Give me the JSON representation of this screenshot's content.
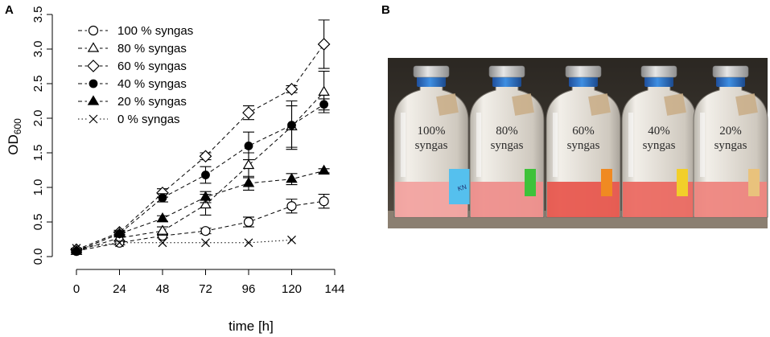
{
  "figure": {
    "panel_a_letter": "A",
    "panel_b_letter": "B"
  },
  "chart_data": {
    "type": "line",
    "title": "",
    "xlabel": "time [h]",
    "ylabel": "OD",
    "ylabel_sub": "600",
    "xlim": [
      0,
      144
    ],
    "ylim": [
      0,
      3.5
    ],
    "xticks": [
      0,
      24,
      48,
      72,
      96,
      120,
      144
    ],
    "xtick_labels": [
      "0",
      "24",
      "48",
      "72",
      "96",
      "120",
      "144"
    ],
    "yticks": [
      0,
      0.5,
      1,
      1.5,
      2,
      2.5,
      3,
      3.5
    ],
    "ytick_labels": [
      "0.0",
      "0.5",
      "1.0",
      "1.5",
      "2.0",
      "2.5",
      "3.0",
      "3.5"
    ],
    "grid": false,
    "legend_position": "top-left",
    "series": [
      {
        "name": "100 % syngas",
        "marker": "open-circle",
        "line": "dashed",
        "x": [
          0,
          24,
          48,
          72,
          96,
          120,
          138
        ],
        "y": [
          0.08,
          0.2,
          0.3,
          0.37,
          0.5,
          0.73,
          0.8
        ],
        "err": [
          0.02,
          0.03,
          0.03,
          0.04,
          0.07,
          0.1,
          0.1
        ]
      },
      {
        "name": "80 % syngas",
        "marker": "open-triangle",
        "line": "dashed",
        "x": [
          0,
          24,
          48,
          72,
          96,
          120,
          138
        ],
        "y": [
          0.08,
          0.27,
          0.37,
          0.75,
          1.32,
          1.88,
          2.38
        ],
        "err": [
          0.02,
          0.04,
          0.06,
          0.15,
          0.18,
          0.3,
          0.3
        ]
      },
      {
        "name": "60 % syngas",
        "marker": "open-diamond",
        "line": "dashed",
        "x": [
          0,
          24,
          48,
          72,
          96,
          120,
          138
        ],
        "y": [
          0.1,
          0.35,
          0.92,
          1.45,
          2.08,
          2.42,
          3.07
        ],
        "err": [
          0.02,
          0.03,
          0.06,
          0.05,
          0.1,
          0.05,
          0.35
        ]
      },
      {
        "name": "40 % syngas",
        "marker": "filled-circle",
        "line": "dashed",
        "x": [
          0,
          24,
          48,
          72,
          96,
          120,
          138
        ],
        "y": [
          0.08,
          0.33,
          0.85,
          1.18,
          1.6,
          1.9,
          2.2
        ],
        "err": [
          0.02,
          0.03,
          0.06,
          0.12,
          0.2,
          0.35,
          0.08
        ]
      },
      {
        "name": "20 % syngas",
        "marker": "filled-triangle",
        "line": "dashed",
        "x": [
          0,
          24,
          48,
          72,
          96,
          120,
          138
        ],
        "y": [
          0.08,
          0.33,
          0.55,
          0.86,
          1.06,
          1.12,
          1.24
        ],
        "err": [
          0.02,
          0.03,
          0.04,
          0.08,
          0.1,
          0.08,
          0.03
        ]
      },
      {
        "name": "0 % syngas",
        "marker": "cross",
        "line": "dotted",
        "x": [
          0,
          24,
          48,
          72,
          96,
          120
        ],
        "y": [
          0.12,
          0.2,
          0.2,
          0.2,
          0.2,
          0.24
        ],
        "err": [
          0,
          0,
          0,
          0,
          0,
          0
        ]
      }
    ]
  },
  "photo": {
    "bottles": [
      {
        "label_line1": "100%",
        "label_line2": "syngas",
        "liquid_color": "#f2a3a0",
        "tag_color": "#55c0ee",
        "tag_text": "KN"
      },
      {
        "label_line1": "80%",
        "label_line2": "syngas",
        "liquid_color": "#ee8f8c",
        "tag_color": "#3ec23a",
        "tag_text": ""
      },
      {
        "label_line1": "60%",
        "label_line2": "syngas",
        "liquid_color": "#e8584f",
        "tag_color": "#f08a22",
        "tag_text": ""
      },
      {
        "label_line1": "40%",
        "label_line2": "syngas",
        "liquid_color": "#eb6a62",
        "tag_color": "#f2cf2a",
        "tag_text": ""
      },
      {
        "label_line1": "20%",
        "label_line2": "syngas",
        "liquid_color": "#ee8680",
        "tag_color": "#e9c27c",
        "tag_text": ""
      }
    ]
  }
}
